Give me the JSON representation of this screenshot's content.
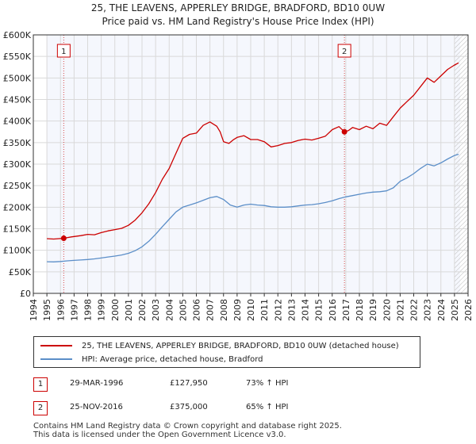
{
  "header": {
    "title_line1": "25, THE LEAVENS, APPERLEY BRIDGE, BRADFORD, BD10 0UW",
    "title_line2": "Price paid vs. HM Land Registry's House Price Index (HPI)"
  },
  "chart_data": {
    "type": "line",
    "ylim": [
      0,
      600000
    ],
    "xlim": [
      1994,
      2026
    ],
    "y_ticks": [
      {
        "value": 0,
        "label": "£0"
      },
      {
        "value": 50000,
        "label": "£50K"
      },
      {
        "value": 100000,
        "label": "£100K"
      },
      {
        "value": 150000,
        "label": "£150K"
      },
      {
        "value": 200000,
        "label": "£200K"
      },
      {
        "value": 250000,
        "label": "£250K"
      },
      {
        "value": 300000,
        "label": "£300K"
      },
      {
        "value": 350000,
        "label": "£350K"
      },
      {
        "value": 400000,
        "label": "£400K"
      },
      {
        "value": 450000,
        "label": "£450K"
      },
      {
        "value": 500000,
        "label": "£500K"
      },
      {
        "value": 550000,
        "label": "£550K"
      },
      {
        "value": 600000,
        "label": "£600K"
      }
    ],
    "x_ticks": [
      "1994",
      "1995",
      "1996",
      "1997",
      "1998",
      "1999",
      "2000",
      "2001",
      "2002",
      "2003",
      "2004",
      "2005",
      "2006",
      "2007",
      "2008",
      "2009",
      "2010",
      "2011",
      "2012",
      "2013",
      "2014",
      "2015",
      "2016",
      "2017",
      "2018",
      "2019",
      "2020",
      "2021",
      "2022",
      "2023",
      "2024",
      "2025",
      "2026"
    ],
    "data_start_year": 1995.0,
    "data_end_year": 2025.42,
    "hatch_after_year": 2025.0,
    "series": [
      {
        "name": "25, THE LEAVENS, APPERLEY BRIDGE, BRADFORD, BD10 0UW (detached house)",
        "color": "#cc0000",
        "x": [
          1995.0,
          1995.5,
          1996.24,
          1996.8,
          1997.5,
          1998.0,
          1998.5,
          1999.0,
          1999.5,
          2000.0,
          2000.5,
          2001.0,
          2001.5,
          2002.0,
          2002.5,
          2003.0,
          2003.5,
          2004.0,
          2004.5,
          2005.0,
          2005.5,
          2006.0,
          2006.5,
          2007.0,
          2007.5,
          2007.75,
          2008.0,
          2008.4,
          2008.7,
          2009.0,
          2009.5,
          2010.0,
          2010.5,
          2011.0,
          2011.5,
          2012.0,
          2012.5,
          2013.0,
          2013.5,
          2014.0,
          2014.5,
          2015.0,
          2015.5,
          2016.0,
          2016.5,
          2016.9,
          2017.2,
          2017.5,
          2018.0,
          2018.5,
          2019.0,
          2019.5,
          2020.0,
          2020.5,
          2021.0,
          2021.5,
          2022.0,
          2022.5,
          2023.0,
          2023.5,
          2024.0,
          2024.5,
          2025.0,
          2025.3
        ],
        "values": [
          127000,
          126000,
          127950,
          131000,
          134000,
          137000,
          136000,
          141000,
          145000,
          148000,
          151000,
          158000,
          170000,
          187000,
          208000,
          234000,
          265000,
          290000,
          325000,
          360000,
          369000,
          372000,
          390000,
          398000,
          388000,
          375000,
          352000,
          348000,
          356000,
          362000,
          366000,
          357000,
          357000,
          352000,
          340000,
          343000,
          348000,
          350000,
          355000,
          358000,
          356000,
          360000,
          365000,
          380000,
          387000,
          375000,
          378000,
          385000,
          380000,
          388000,
          382000,
          395000,
          390000,
          410000,
          430000,
          445000,
          460000,
          480000,
          500000,
          490000,
          505000,
          520000,
          530000,
          535000
        ]
      },
      {
        "name": "HPI: Average price, detached house, Bradford",
        "color": "#5b8ec8",
        "x": [
          1995.0,
          1995.5,
          1996.0,
          1996.5,
          1997.0,
          1997.5,
          1998.0,
          1998.5,
          1999.0,
          1999.5,
          2000.0,
          2000.5,
          2001.0,
          2001.5,
          2002.0,
          2002.5,
          2003.0,
          2003.5,
          2004.0,
          2004.5,
          2005.0,
          2005.5,
          2006.0,
          2006.5,
          2007.0,
          2007.5,
          2008.0,
          2008.5,
          2009.0,
          2009.5,
          2010.0,
          2010.5,
          2011.0,
          2011.5,
          2012.0,
          2012.5,
          2013.0,
          2013.5,
          2014.0,
          2014.5,
          2015.0,
          2015.5,
          2016.0,
          2016.5,
          2017.0,
          2017.5,
          2018.0,
          2018.5,
          2019.0,
          2019.5,
          2020.0,
          2020.5,
          2021.0,
          2021.5,
          2022.0,
          2022.5,
          2023.0,
          2023.5,
          2024.0,
          2024.5,
          2025.0,
          2025.3
        ],
        "values": [
          73500,
          73000,
          74000,
          75500,
          76500,
          77500,
          78500,
          80000,
          82000,
          84500,
          86500,
          89000,
          93000,
          99000,
          108000,
          121000,
          137000,
          155000,
          172000,
          189000,
          200000,
          205000,
          210000,
          216000,
          222000,
          225000,
          218000,
          205000,
          200000,
          205000,
          207000,
          205000,
          204000,
          201000,
          200000,
          200000,
          201000,
          203000,
          205000,
          206000,
          208000,
          211000,
          215000,
          220000,
          224000,
          227000,
          230000,
          233000,
          235000,
          236000,
          238000,
          245000,
          260000,
          268000,
          278000,
          290000,
          300000,
          296000,
          303000,
          312000,
          320000,
          323000
        ]
      }
    ],
    "markers": [
      {
        "label": "1",
        "x": 1996.24,
        "value": 127950
      },
      {
        "label": "2",
        "x": 2016.9,
        "value": 375000
      }
    ]
  },
  "legend": {
    "property_label": "25, THE LEAVENS, APPERLEY BRIDGE, BRADFORD, BD10 0UW (detached house)",
    "hpi_label": "HPI: Average price, detached house, Bradford"
  },
  "sales": [
    {
      "num": "1",
      "date": "29-MAR-1996",
      "price": "£127,950",
      "hpi": "73% ↑ HPI"
    },
    {
      "num": "2",
      "date": "25-NOV-2016",
      "price": "£375,000",
      "hpi": "65% ↑ HPI"
    }
  ],
  "footer": {
    "line1": "Contains HM Land Registry data © Crown copyright and database right 2025.",
    "line2": "This data is licensed under the Open Government Licence v3.0."
  },
  "colors": {
    "property": "#cc0000",
    "hpi": "#5b8ec8",
    "grid": "#d9d9d9",
    "highlight": "#e8eefa"
  }
}
